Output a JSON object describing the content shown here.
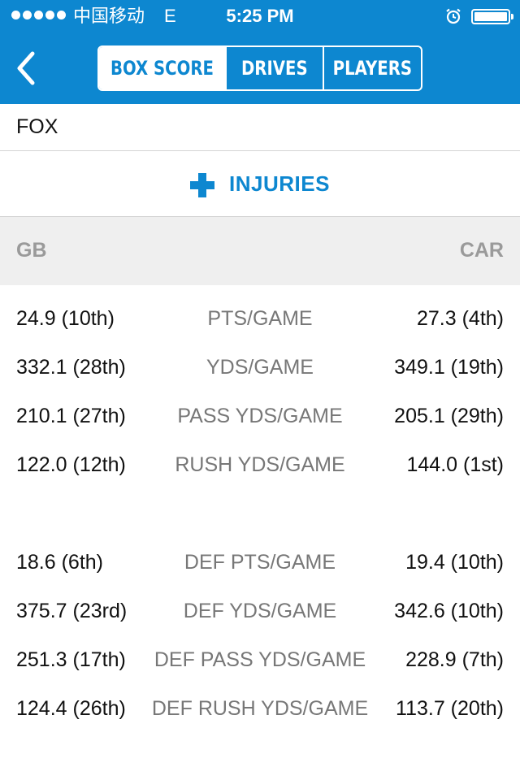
{
  "status_bar": {
    "carrier": "中国移动",
    "network_type": "E",
    "time": "5:25 PM",
    "alarm_icon": "alarm-clock-icon",
    "battery_level": 1.0
  },
  "nav": {
    "back_icon": "chevron-left-icon",
    "tabs": [
      {
        "label": "BOX SCORE",
        "active": true
      },
      {
        "label": "DRIVES",
        "active": false
      },
      {
        "label": "PLAYERS",
        "active": false
      }
    ]
  },
  "broadcast": "FOX",
  "injuries": {
    "icon": "plus-icon",
    "label": "INJURIES"
  },
  "teams": {
    "left": "GB",
    "right": "CAR"
  },
  "offense": [
    {
      "left": "24.9 (10th)",
      "stat": "PTS/GAME",
      "right": "27.3 (4th)"
    },
    {
      "left": "332.1 (28th)",
      "stat": "YDS/GAME",
      "right": "349.1 (19th)"
    },
    {
      "left": "210.1 (27th)",
      "stat": "PASS YDS/GAME",
      "right": "205.1 (29th)"
    },
    {
      "left": "122.0 (12th)",
      "stat": "RUSH YDS/GAME",
      "right": "144.0 (1st)"
    }
  ],
  "defense": [
    {
      "left": "18.6 (6th)",
      "stat": "DEF PTS/GAME",
      "right": "19.4 (10th)"
    },
    {
      "left": "375.7 (23rd)",
      "stat": "DEF YDS/GAME",
      "right": "342.6 (10th)"
    },
    {
      "left": "251.3 (17th)",
      "stat": "DEF PASS YDS/GAME",
      "right": "228.9 (7th)"
    },
    {
      "left": "124.4 (26th)",
      "stat": "DEF RUSH YDS/GAME",
      "right": "113.7 (20th)"
    }
  ],
  "colors": {
    "accent": "#0d87d0",
    "header_bg": "#0d87d0",
    "team_header_bg": "#efefef"
  }
}
